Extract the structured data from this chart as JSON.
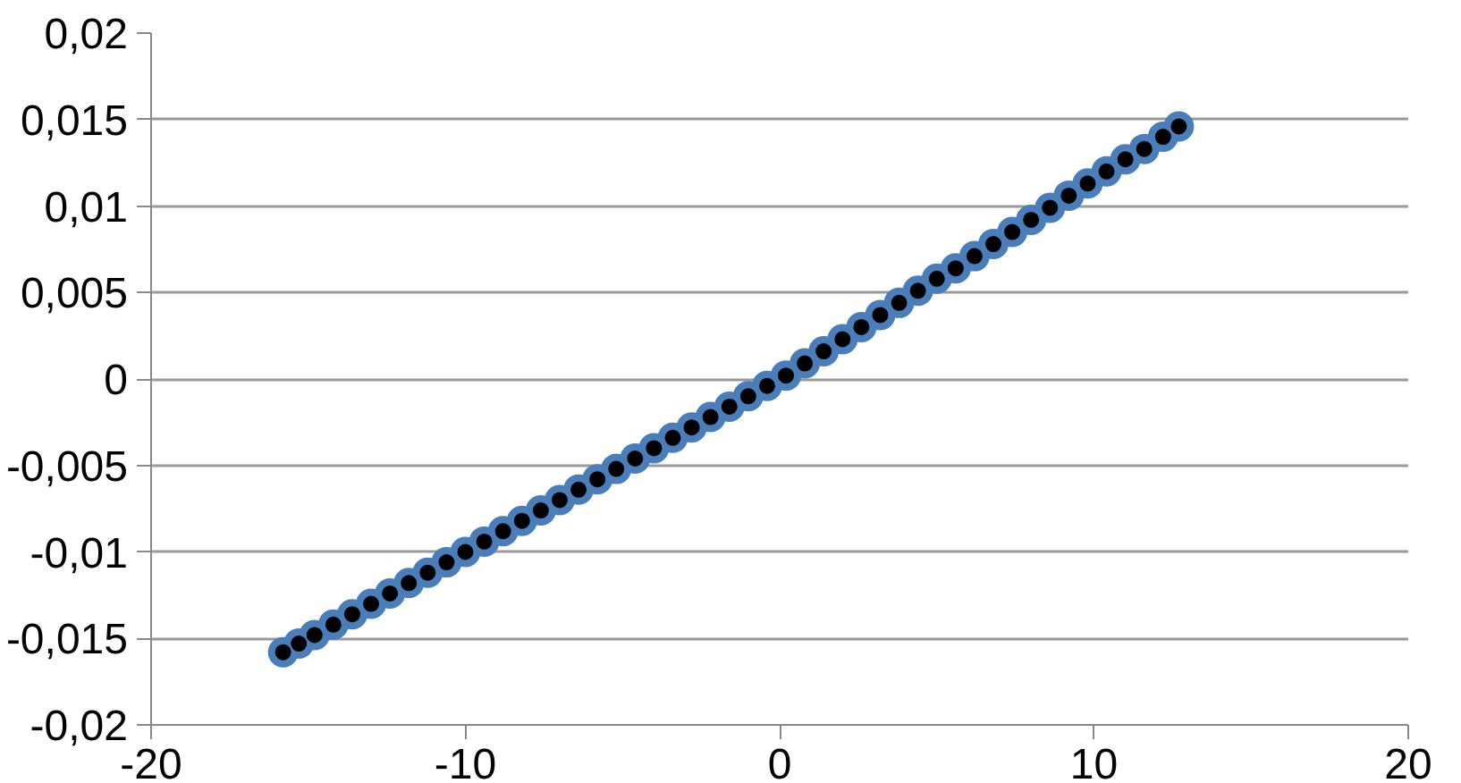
{
  "chart_data": {
    "type": "scatter",
    "x": [
      -15.8,
      -15.3,
      -14.8,
      -14.2,
      -13.6,
      -13.0,
      -12.4,
      -11.8,
      -11.2,
      -10.6,
      -10.0,
      -9.4,
      -8.8,
      -8.2,
      -7.6,
      -7.0,
      -6.4,
      -5.8,
      -5.2,
      -4.6,
      -4.0,
      -3.4,
      -2.8,
      -2.2,
      -1.6,
      -1.0,
      -0.4,
      0.2,
      0.8,
      1.4,
      2.0,
      2.6,
      3.2,
      3.8,
      4.4,
      5.0,
      5.6,
      6.2,
      6.8,
      7.4,
      8.0,
      8.6,
      9.2,
      9.8,
      10.4,
      11.0,
      11.6,
      12.2,
      12.7
    ],
    "series": [
      {
        "color": "#4a7ebb",
        "values": [
          -0.0158,
          -0.0153,
          -0.0148,
          -0.0142,
          -0.0136,
          -0.013,
          -0.0124,
          -0.0118,
          -0.0112,
          -0.0106,
          -0.01,
          -0.0094,
          -0.0088,
          -0.0082,
          -0.0076,
          -0.007,
          -0.0064,
          -0.0058,
          -0.0052,
          -0.0046,
          -0.004,
          -0.0034,
          -0.0028,
          -0.0022,
          -0.0016,
          -0.001,
          -0.0004,
          0.0002,
          0.0009,
          0.0016,
          0.0023,
          0.003,
          0.0037,
          0.0044,
          0.0051,
          0.0058,
          0.0064,
          0.0071,
          0.0078,
          0.0085,
          0.0092,
          0.0099,
          0.0106,
          0.0113,
          0.012,
          0.0127,
          0.0133,
          0.014,
          0.0146
        ]
      },
      {
        "color": "#000000",
        "values": [
          -0.0158,
          -0.0153,
          -0.0148,
          -0.0142,
          -0.0136,
          -0.013,
          -0.0124,
          -0.0118,
          -0.0112,
          -0.0106,
          -0.01,
          -0.0094,
          -0.0088,
          -0.0082,
          -0.0076,
          -0.007,
          -0.0064,
          -0.0058,
          -0.0052,
          -0.0046,
          -0.004,
          -0.0034,
          -0.0028,
          -0.0022,
          -0.0016,
          -0.001,
          -0.0004,
          0.0002,
          0.0009,
          0.0016,
          0.0023,
          0.003,
          0.0037,
          0.0044,
          0.0051,
          0.0058,
          0.0064,
          0.0071,
          0.0078,
          0.0085,
          0.0092,
          0.0099,
          0.0106,
          0.0113,
          0.012,
          0.0127,
          0.0133,
          0.014,
          0.0146
        ]
      }
    ],
    "xlim": [
      -20,
      20
    ],
    "xticks": [
      -20,
      -10,
      0,
      10,
      20
    ],
    "ylim": [
      -0.02,
      0.02
    ],
    "yticks": [
      {
        "value": -0.02,
        "label": "-0,02"
      },
      {
        "value": -0.015,
        "label": "-0,015"
      },
      {
        "value": -0.01,
        "label": "-0,01"
      },
      {
        "value": -0.005,
        "label": "-0,005"
      },
      0,
      {
        "value": 0.005,
        "label": "0,005"
      },
      {
        "value": 0.01,
        "label": "0,01"
      },
      {
        "value": 0.015,
        "label": "0,015"
      },
      {
        "value": 0.02,
        "label": "0,02"
      }
    ],
    "grid": "y",
    "marker": "circle"
  }
}
